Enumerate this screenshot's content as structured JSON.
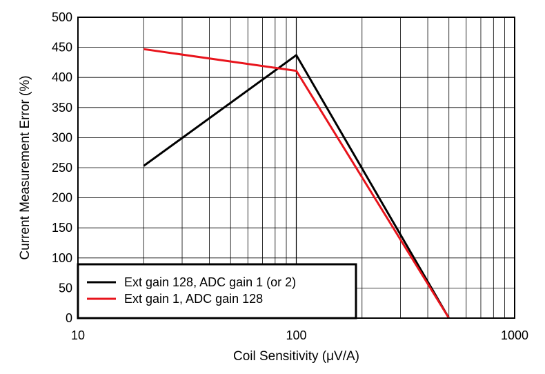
{
  "chart_data": {
    "type": "line",
    "x_scale": "log",
    "xlabel": "Coil Sensitivity (μV/A)",
    "ylabel": "Current Measurement Error (%)",
    "xlim": [
      10,
      1000
    ],
    "ylim": [
      0,
      500
    ],
    "x_ticks": [
      10,
      100,
      1000
    ],
    "x_tick_labels": [
      "10",
      "100",
      "1000"
    ],
    "y_ticks": [
      0,
      50,
      100,
      150,
      200,
      250,
      300,
      350,
      400,
      450,
      500
    ],
    "y_tick_labels": [
      "0",
      "50",
      "100",
      "150",
      "200",
      "250",
      "300",
      "350",
      "400",
      "450",
      "500"
    ],
    "grid": true,
    "legend_position": "bottom-left",
    "series": [
      {
        "name": "Ext gain 128, ADC gain 1 (or 2)",
        "color": "#000000",
        "x": [
          20,
          100,
          500
        ],
        "y": [
          253,
          437,
          0
        ]
      },
      {
        "name": "Ext gain 1, ADC gain 128",
        "color": "#e8141c",
        "x": [
          20,
          100,
          500
        ],
        "y": [
          447,
          411,
          0
        ]
      }
    ]
  }
}
